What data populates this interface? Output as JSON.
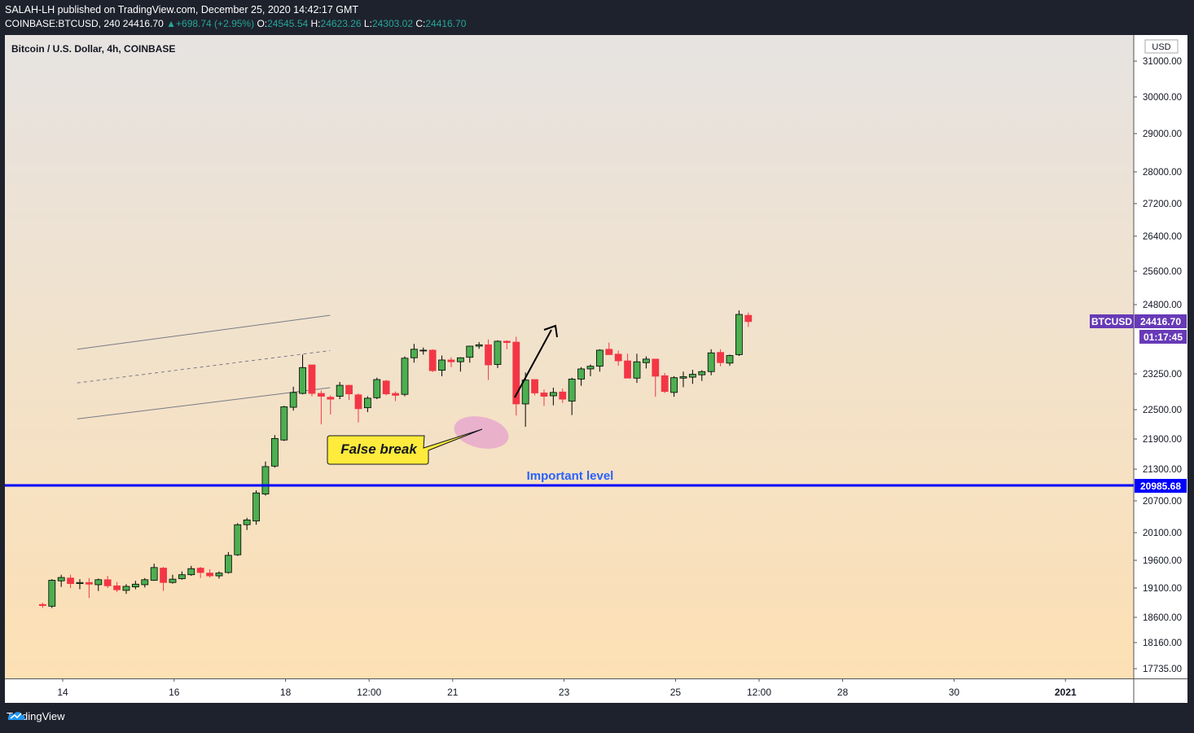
{
  "header": {
    "line1": "SALAH-LH published on TradingView.com, December 25, 2020 14:42:17 GMT",
    "symbol_line": "COINBASE:BTCUSD, 240",
    "last": "24416.70",
    "change": "+698.74 (+2.95%)",
    "o_label": "O:",
    "o_value": "24545.54",
    "h_label": "H:",
    "h_value": "24623.26",
    "l_label": "L:",
    "l_value": "24303.02",
    "c_label": "C:",
    "c_value": "24416.70"
  },
  "footer": {
    "brand": "TradingView"
  },
  "colors": {
    "up": "#4caf50",
    "down": "#f23645",
    "level_line": "#0000ff",
    "bg_top": "#e6e3e1",
    "bg_bottom": "#fde0b4",
    "tag": "#673ab7"
  },
  "chart_data": {
    "type": "candlestick",
    "title": "Bitcoin / U.S. Dollar, 4h, COINBASE",
    "currency": "USD",
    "y_ticks": [
      "31000.00",
      "30000.00",
      "29000.00",
      "28000.00",
      "27200.00",
      "26400.00",
      "25600.00",
      "24800.00",
      "23250.00",
      "22500.00",
      "21900.00",
      "21300.00",
      "20700.00",
      "20100.00",
      "19600.00",
      "19100.00",
      "18600.00",
      "18160.00",
      "17735.00"
    ],
    "x_ticks": [
      "14",
      "16",
      "18",
      "12:00",
      "21",
      "23",
      "25",
      "12:00",
      "28",
      "30",
      "2021"
    ],
    "ohlc": [
      [
        18820,
        18850,
        18760,
        18800
      ],
      [
        18790,
        19260,
        18760,
        19240
      ],
      [
        19230,
        19340,
        19120,
        19290
      ],
      [
        19280,
        19340,
        19100,
        19180
      ],
      [
        19180,
        19260,
        19080,
        19200
      ],
      [
        19200,
        19280,
        18930,
        19170
      ],
      [
        19160,
        19270,
        19050,
        19250
      ],
      [
        19250,
        19320,
        19100,
        19140
      ],
      [
        19140,
        19210,
        19030,
        19070
      ],
      [
        19060,
        19170,
        19000,
        19130
      ],
      [
        19120,
        19230,
        19080,
        19170
      ],
      [
        19160,
        19280,
        19110,
        19250
      ],
      [
        19240,
        19540,
        19230,
        19470
      ],
      [
        19460,
        19480,
        19050,
        19200
      ],
      [
        19200,
        19340,
        19180,
        19260
      ],
      [
        19270,
        19400,
        19250,
        19340
      ],
      [
        19340,
        19500,
        19320,
        19450
      ],
      [
        19460,
        19480,
        19280,
        19380
      ],
      [
        19370,
        19440,
        19290,
        19320
      ],
      [
        19320,
        19400,
        19270,
        19370
      ],
      [
        19380,
        19750,
        19360,
        19690
      ],
      [
        19700,
        20280,
        19680,
        20250
      ],
      [
        20250,
        20380,
        20150,
        20340
      ],
      [
        20320,
        20900,
        20250,
        20850
      ],
      [
        20830,
        21450,
        20800,
        21350
      ],
      [
        21360,
        21980,
        21330,
        21910
      ],
      [
        21880,
        22580,
        21860,
        22560
      ],
      [
        22550,
        22980,
        22480,
        22860
      ],
      [
        22840,
        23680,
        22820,
        23390
      ],
      [
        23450,
        23450,
        22780,
        22840
      ],
      [
        22840,
        22900,
        22200,
        22780
      ],
      [
        22760,
        22800,
        22400,
        22720
      ],
      [
        22780,
        23080,
        22720,
        23010
      ],
      [
        23010,
        23020,
        22700,
        22830
      ],
      [
        22810,
        22840,
        22240,
        22520
      ],
      [
        22540,
        22780,
        22450,
        22740
      ],
      [
        22750,
        23170,
        22720,
        23130
      ],
      [
        23100,
        23120,
        22800,
        22830
      ],
      [
        22840,
        22880,
        22680,
        22800
      ],
      [
        22820,
        23640,
        22780,
        23600
      ],
      [
        23610,
        23920,
        23500,
        23800
      ],
      [
        23780,
        23840,
        23680,
        23780
      ],
      [
        23780,
        23800,
        23290,
        23320
      ],
      [
        23330,
        23660,
        23200,
        23560
      ],
      [
        23560,
        23620,
        23400,
        23520
      ],
      [
        23520,
        23620,
        23300,
        23610
      ],
      [
        23620,
        23880,
        23500,
        23870
      ],
      [
        23870,
        23960,
        23810,
        23900
      ],
      [
        23900,
        24020,
        23120,
        23450
      ],
      [
        23460,
        24000,
        23380,
        23980
      ],
      [
        23980,
        24000,
        23800,
        23950
      ],
      [
        23960,
        24080,
        22380,
        22620
      ],
      [
        22620,
        23280,
        22150,
        23120
      ],
      [
        23130,
        23130,
        22800,
        22850
      ],
      [
        22850,
        22920,
        22580,
        22780
      ],
      [
        22790,
        22960,
        22590,
        22860
      ],
      [
        22870,
        22940,
        22640,
        22720
      ],
      [
        22680,
        23170,
        22390,
        23140
      ],
      [
        23140,
        23400,
        23000,
        23360
      ],
      [
        23360,
        23460,
        23200,
        23420
      ],
      [
        23420,
        23800,
        23300,
        23780
      ],
      [
        23800,
        23950,
        23700,
        23680
      ],
      [
        23690,
        23770,
        23430,
        23540
      ],
      [
        23540,
        23700,
        23180,
        23160
      ],
      [
        23160,
        23700,
        23060,
        23520
      ],
      [
        23500,
        23640,
        23370,
        23580
      ],
      [
        23580,
        23580,
        22770,
        23200
      ],
      [
        23210,
        23270,
        22850,
        22880
      ],
      [
        22860,
        23200,
        22770,
        23170
      ],
      [
        23160,
        23300,
        22970,
        23190
      ],
      [
        23180,
        23340,
        23040,
        23240
      ],
      [
        23230,
        23330,
        23100,
        23300
      ],
      [
        23300,
        23800,
        23220,
        23720
      ],
      [
        23730,
        23800,
        23420,
        23500
      ],
      [
        23490,
        23680,
        23430,
        23660
      ],
      [
        23680,
        24670,
        23650,
        24580
      ],
      [
        24560,
        24620,
        24300,
        24420
      ]
    ],
    "channel": {
      "upper": [
        [
          14.26,
          23800
        ],
        [
          18.8,
          24560
        ]
      ],
      "lower": [
        [
          14.26,
          22310
        ],
        [
          18.8,
          22960
        ]
      ],
      "mid": [
        [
          14.26,
          23060
        ],
        [
          18.8,
          23770
        ]
      ]
    },
    "level": {
      "label": "Important level",
      "price_label": "20985.68",
      "value": 20985.68
    },
    "annotations": {
      "callout": "False break",
      "last_tag": "BTCUSD",
      "last_price": "24416.70",
      "countdown": "01:17:45"
    }
  }
}
